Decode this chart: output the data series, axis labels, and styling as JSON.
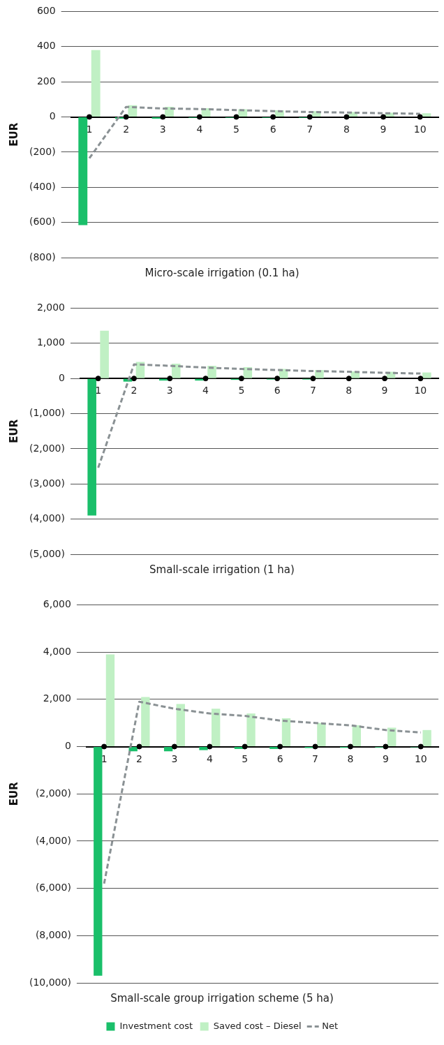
{
  "chart_data": [
    {
      "type": "bar",
      "title": "Micro-scale irrigation (0.1 ha)",
      "ylabel": "EUR",
      "categories": [
        "1",
        "2",
        "3",
        "4",
        "5",
        "6",
        "7",
        "8",
        "9",
        "10"
      ],
      "ylim": [
        -800,
        600
      ],
      "yticks": [
        {
          "value": -800,
          "label": "(800)"
        },
        {
          "value": -600,
          "label": "(600)"
        },
        {
          "value": -400,
          "label": "(400)"
        },
        {
          "value": -200,
          "label": "(200)"
        },
        0,
        200,
        400,
        600
      ],
      "grid": "y",
      "legend": false,
      "series": [
        {
          "color": "#1abf6a",
          "values": [
            -615,
            -10,
            -10,
            -5,
            -5,
            -5,
            -5,
            null,
            null,
            null
          ]
        },
        {
          "color": "#c0f0c4",
          "values": [
            380,
            67,
            58,
            50,
            44,
            38,
            33,
            28,
            24,
            21
          ]
        },
        {
          "type": "line",
          "color": "#8a9194",
          "line_style": "dashed",
          "marker": "none",
          "values": [
            -235,
            57,
            48,
            45,
            39,
            33,
            28,
            25,
            21,
            18
          ]
        },
        {
          "type": "scatter",
          "color": "#000000",
          "marker": "circle",
          "x": [
            "1",
            "2",
            "3",
            "4",
            "5",
            "6",
            "7",
            "8",
            "9",
            "10"
          ],
          "values": [
            0,
            0,
            0,
            0,
            0,
            0,
            0,
            0,
            0,
            0
          ]
        }
      ]
    },
    {
      "type": "bar",
      "title": "Small-scale irrigation (1 ha)",
      "ylabel": "EUR",
      "categories": [
        "1",
        "2",
        "3",
        "4",
        "5",
        "6",
        "7",
        "8",
        "9",
        "10"
      ],
      "ylim": [
        -5000,
        2000
      ],
      "yticks": [
        {
          "value": -5000,
          "label": "(5,000)"
        },
        {
          "value": -4000,
          "label": "(4,000)"
        },
        {
          "value": -3000,
          "label": "(3,000)"
        },
        {
          "value": -2000,
          "label": "(2,000)"
        },
        {
          "value": -1000,
          "label": "(1,000)"
        },
        0,
        {
          "value": 1000,
          "label": "1,000"
        },
        {
          "value": 2000,
          "label": "2,000"
        }
      ],
      "grid": "y",
      "legend": false,
      "series": [
        {
          "color": "#1abf6a",
          "values": [
            -3900,
            -90,
            -60,
            -60,
            -40,
            -30,
            -30,
            null,
            -10,
            -10
          ]
        },
        {
          "color": "#c0f0c4",
          "values": [
            1360,
            470,
            420,
            360,
            320,
            270,
            240,
            200,
            190,
            170
          ]
        },
        {
          "type": "line",
          "color": "#8a9194",
          "line_style": "dashed",
          "marker": "none",
          "values": [
            -2540,
            400,
            360,
            310,
            270,
            240,
            210,
            190,
            160,
            140
          ]
        },
        {
          "type": "scatter",
          "color": "#000000",
          "marker": "circle",
          "x": [
            "1",
            "2",
            "3",
            "4",
            "5",
            "6",
            "7",
            "8",
            "9",
            "10"
          ],
          "values": [
            0,
            0,
            0,
            0,
            0,
            0,
            0,
            0,
            0,
            0
          ]
        }
      ]
    },
    {
      "type": "bar",
      "title": "Small-scale group irrigation scheme (5 ha)",
      "ylabel": "EUR",
      "categories": [
        "1",
        "2",
        "3",
        "4",
        "5",
        "6",
        "7",
        "8",
        "9",
        "10"
      ],
      "ylim": [
        -10000,
        6000
      ],
      "yticks": [
        {
          "value": -10000,
          "label": "(10,000)"
        },
        {
          "value": -8000,
          "label": "(8,000)"
        },
        {
          "value": -6000,
          "label": "(6,000)"
        },
        {
          "value": -4000,
          "label": "(4,000)"
        },
        {
          "value": -2000,
          "label": "(2,000)"
        },
        0,
        {
          "value": 2000,
          "label": "2,000"
        },
        {
          "value": 4000,
          "label": "4,000"
        },
        {
          "value": 6000,
          "label": "6,000"
        }
      ],
      "grid": "y",
      "legend": "bottom",
      "series": [
        {
          "name": "Investment cost",
          "color": "#1abf6a",
          "values": [
            -9700,
            -200,
            -200,
            -150,
            -100,
            -100,
            -60,
            -50,
            -40,
            -30
          ]
        },
        {
          "name": "Saved cost – Diesel",
          "color": "#c0f0c4",
          "values": [
            3900,
            2100,
            1800,
            1600,
            1400,
            1200,
            1000,
            900,
            800,
            700
          ]
        },
        {
          "name": "Net",
          "type": "line",
          "color": "#8a9194",
          "line_style": "dashed",
          "marker": "none",
          "values": [
            -5800,
            1900,
            1600,
            1400,
            1300,
            1100,
            1000,
            900,
            700,
            600
          ]
        },
        {
          "type": "scatter",
          "color": "#000000",
          "marker": "circle",
          "x": [
            "1",
            "2",
            "3",
            "4",
            "5",
            "6",
            "7",
            "8",
            "9",
            "10"
          ],
          "values": [
            0,
            0,
            0,
            0,
            0,
            0,
            0,
            0,
            0,
            0
          ]
        }
      ]
    }
  ]
}
